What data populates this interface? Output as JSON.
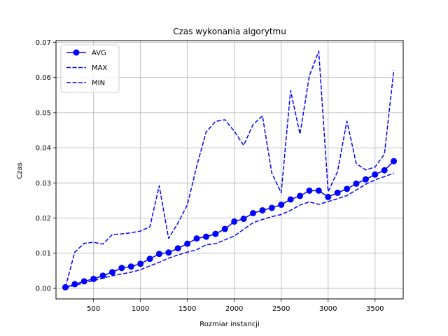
{
  "chart_data": {
    "type": "line",
    "title": "Czas wykonania algorytmu",
    "xlabel": "Rozmiar instancji",
    "ylabel": "Czas",
    "xlim": [
      100,
      3800
    ],
    "ylim": [
      -0.003,
      0.0705
    ],
    "xticks": [
      500,
      1000,
      1500,
      2000,
      2500,
      3000,
      3500
    ],
    "xtick_labels": [
      "500",
      "1000",
      "1500",
      "2000",
      "2500",
      "3000",
      "3500"
    ],
    "yticks": [
      0.0,
      0.01,
      0.02,
      0.03,
      0.04,
      0.05,
      0.06,
      0.07
    ],
    "ytick_labels": [
      "0.00",
      "0.01",
      "0.02",
      "0.03",
      "0.04",
      "0.05",
      "0.06",
      "0.07"
    ],
    "grid": true,
    "legend_position": "top-left",
    "x": [
      200,
      300,
      400,
      500,
      600,
      700,
      800,
      900,
      1000,
      1100,
      1200,
      1300,
      1400,
      1500,
      1600,
      1700,
      1800,
      1900,
      2000,
      2100,
      2200,
      2300,
      2400,
      2500,
      2600,
      2700,
      2800,
      2900,
      3000,
      3100,
      3200,
      3300,
      3400,
      3500,
      3600,
      3700
    ],
    "series": [
      {
        "name": "AVG",
        "color": "#0000ff",
        "style": "solid-marker",
        "values": [
          0.0003,
          0.0012,
          0.002,
          0.0027,
          0.0036,
          0.0046,
          0.0058,
          0.0062,
          0.007,
          0.0084,
          0.0098,
          0.0102,
          0.0114,
          0.0127,
          0.0142,
          0.0147,
          0.0155,
          0.0169,
          0.019,
          0.0198,
          0.0214,
          0.0222,
          0.0229,
          0.0238,
          0.0253,
          0.0263,
          0.0278,
          0.0278,
          0.026,
          0.0272,
          0.0283,
          0.0298,
          0.031,
          0.0324,
          0.0336,
          0.0362
        ]
      },
      {
        "name": "MAX",
        "color": "#0000ff",
        "style": "dashed",
        "values": [
          0.0003,
          0.0103,
          0.0128,
          0.0131,
          0.0126,
          0.0153,
          0.0155,
          0.0158,
          0.0163,
          0.0175,
          0.0292,
          0.0142,
          0.0186,
          0.0238,
          0.0348,
          0.0445,
          0.0475,
          0.048,
          0.0447,
          0.0407,
          0.0466,
          0.0491,
          0.0328,
          0.0272,
          0.0563,
          0.0439,
          0.0605,
          0.0675,
          0.0275,
          0.0332,
          0.0476,
          0.0355,
          0.0337,
          0.0345,
          0.0382,
          0.0621
        ]
      },
      {
        "name": "MIN",
        "color": "#0000ff",
        "style": "dashed",
        "values": [
          0.0002,
          0.0008,
          0.0016,
          0.0022,
          0.0029,
          0.0036,
          0.0041,
          0.0046,
          0.0053,
          0.0064,
          0.0074,
          0.0086,
          0.0095,
          0.0103,
          0.011,
          0.0124,
          0.0127,
          0.0138,
          0.0149,
          0.0168,
          0.0187,
          0.0196,
          0.0204,
          0.021,
          0.0222,
          0.0237,
          0.0246,
          0.0239,
          0.0247,
          0.0255,
          0.0264,
          0.028,
          0.0296,
          0.0309,
          0.0318,
          0.0328
        ]
      }
    ]
  }
}
